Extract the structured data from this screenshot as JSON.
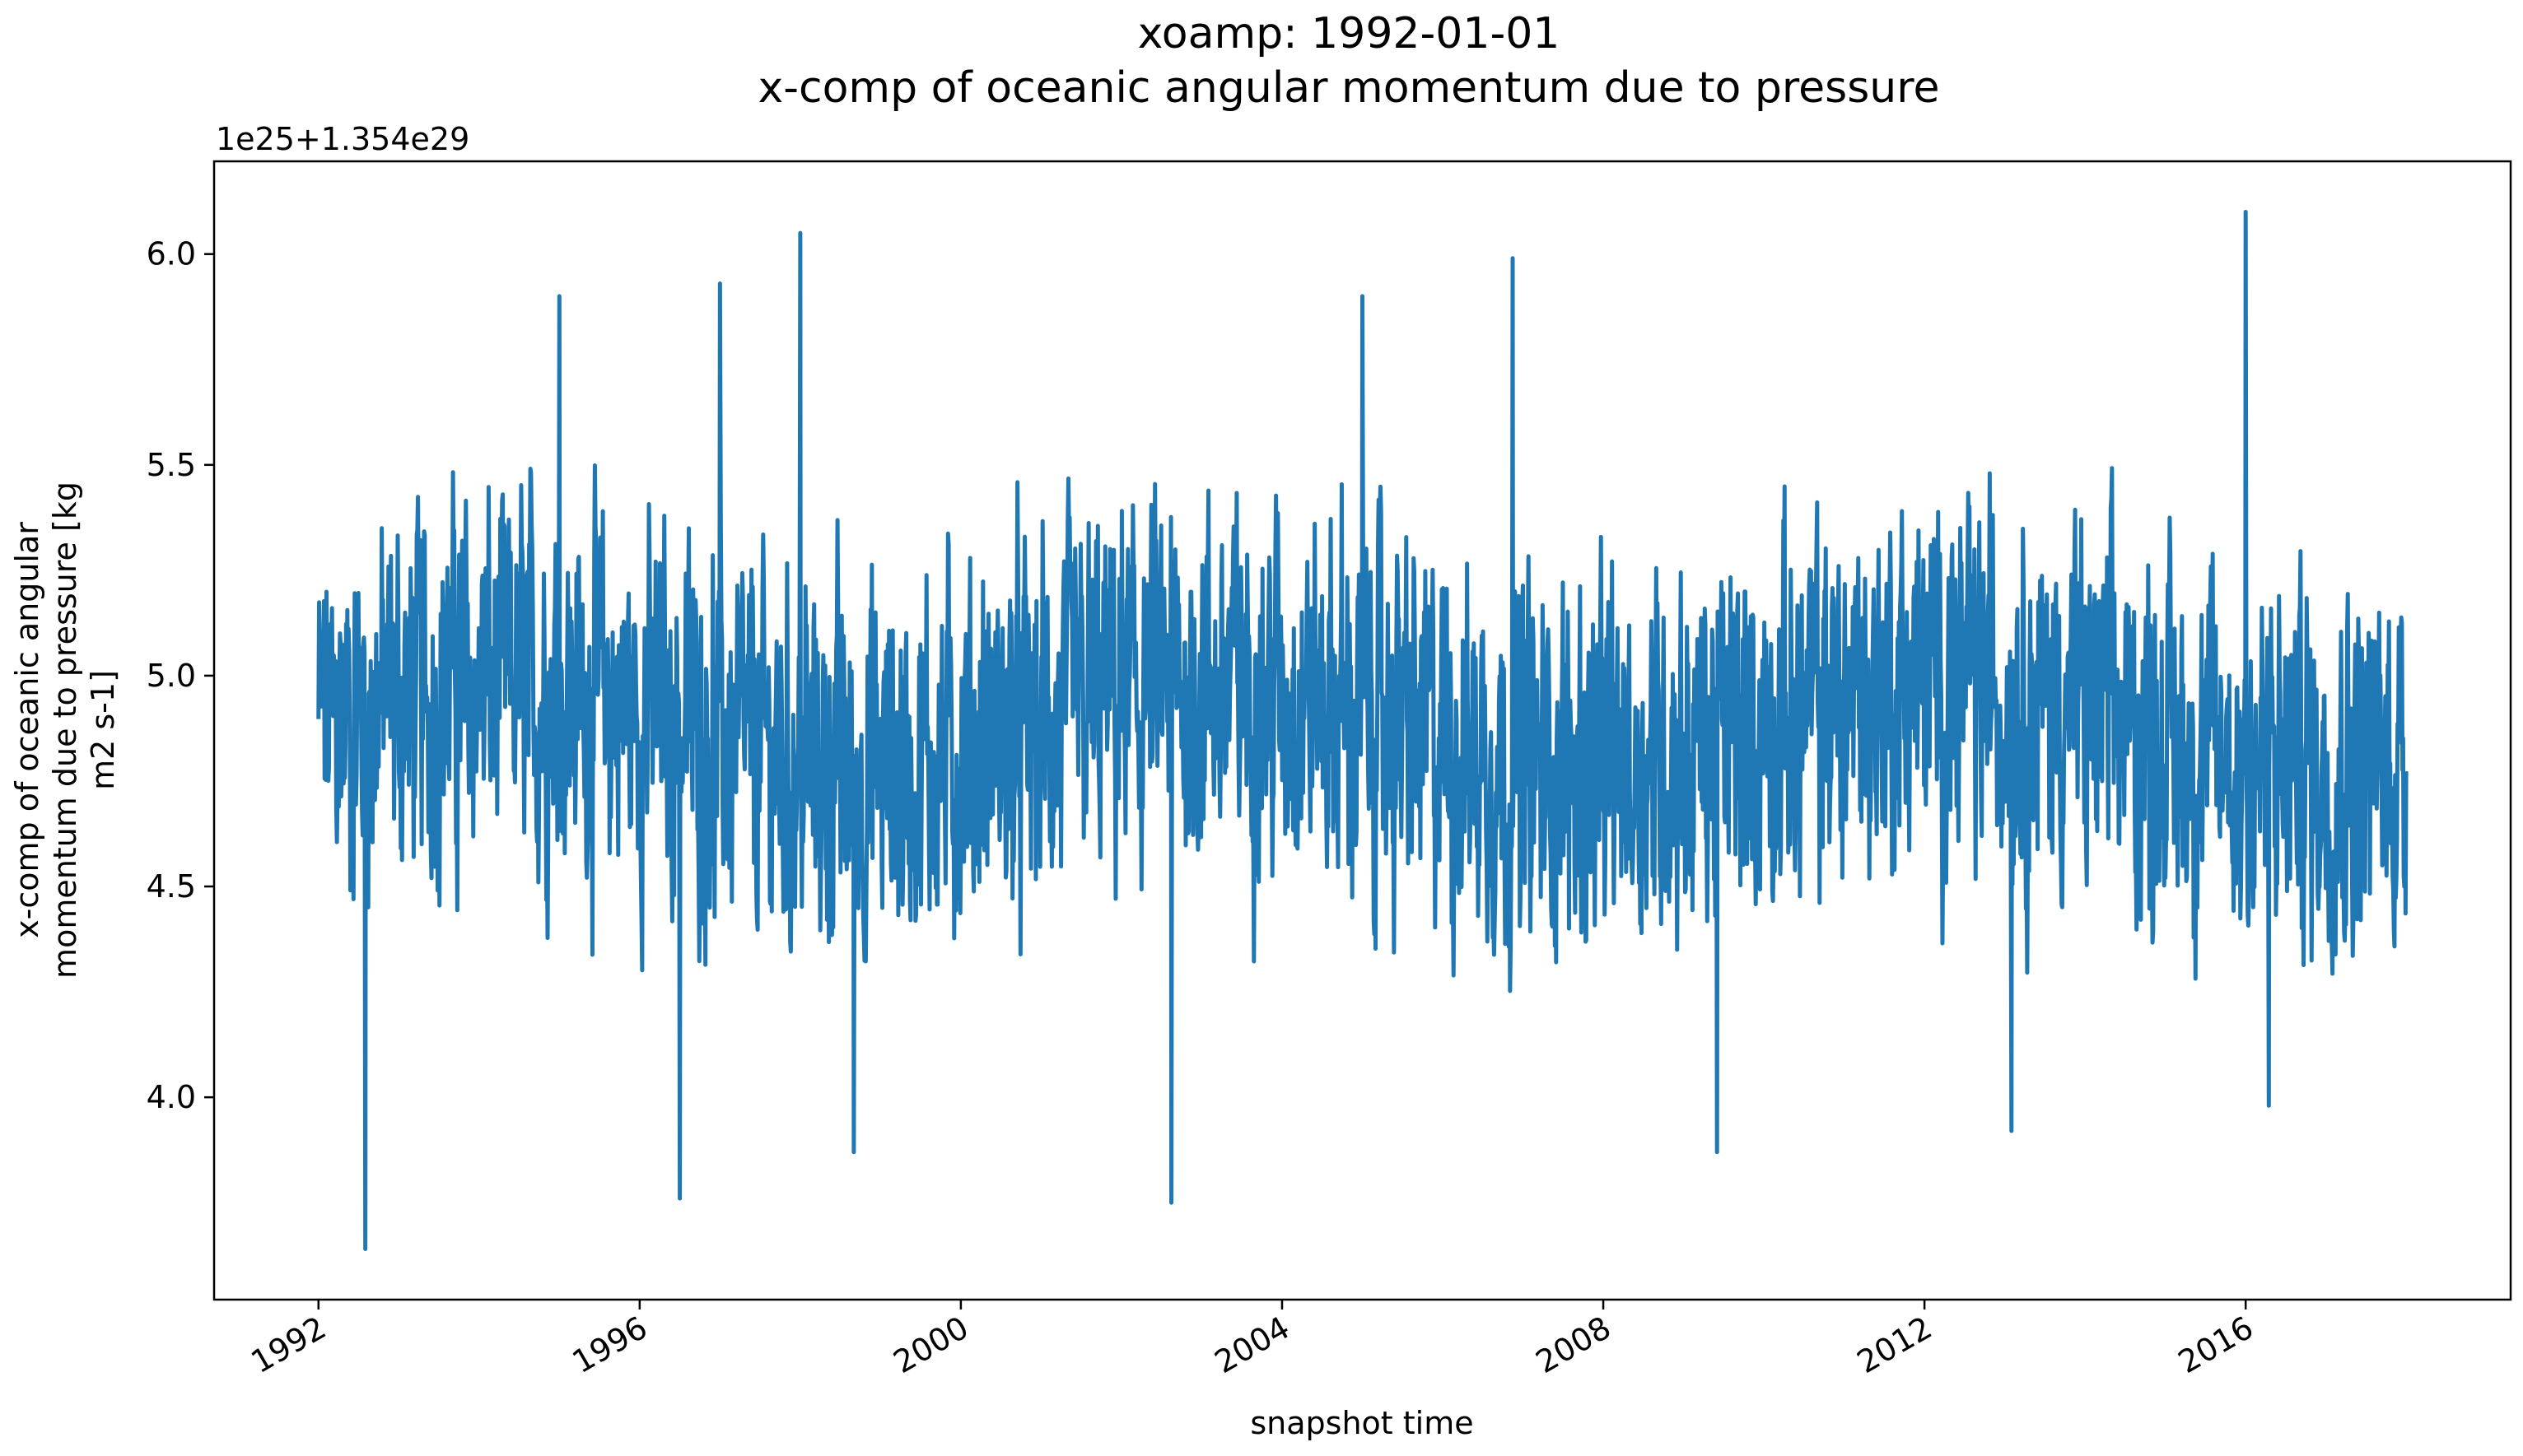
{
  "chart_data": {
    "type": "line",
    "title": "xoamp: 1992-01-01",
    "subtitle": "x-comp of oceanic angular momentum due to pressure",
    "xlabel": "snapshot time",
    "ylabel_lines": [
      "x-comp of oceanic angular",
      "momentum due to pressure [kg",
      "m2 s-1]"
    ],
    "y_offset_text": "1e25+1.354e29",
    "y_tick_values": [
      4.0,
      4.5,
      5.0,
      5.5,
      6.0
    ],
    "y_tick_labels": [
      "4.0",
      "4.5",
      "5.0",
      "5.5",
      "6.0"
    ],
    "x_tick_labels": [
      "1992",
      "1996",
      "2000",
      "2004",
      "2008",
      "2012",
      "2016"
    ],
    "x_tick_years": [
      1992,
      1996,
      2000,
      2004,
      2008,
      2012,
      2016
    ],
    "xlim": [
      1990.7,
      2019.3
    ],
    "ylim": [
      3.52,
      6.22
    ],
    "line_color": "#1f77b4",
    "grid": false,
    "legend": "none",
    "series": [
      {
        "x_start": "1992-01-01",
        "x_end": "2017-12-31",
        "mean": 4.88,
        "min": 3.64,
        "max": 6.1,
        "sampling": "daily",
        "peaks": [
          {
            "date": "1992-08-01",
            "value": 3.64
          },
          {
            "date": "1995-01-01",
            "value": 5.9
          },
          {
            "date": "1996-07-01",
            "value": 3.76
          },
          {
            "date": "1997-01-01",
            "value": 5.93
          },
          {
            "date": "1998-01-01",
            "value": 6.05
          },
          {
            "date": "1998-09-01",
            "value": 3.87
          },
          {
            "date": "2002-08-15",
            "value": 3.75
          },
          {
            "date": "2005-01-01",
            "value": 5.9
          },
          {
            "date": "2006-11-15",
            "value": 5.99
          },
          {
            "date": "2009-06-01",
            "value": 3.87
          },
          {
            "date": "2013-02-01",
            "value": 3.92
          },
          {
            "date": "2016-01-01",
            "value": 6.1
          },
          {
            "date": "2016-04-15",
            "value": 3.98
          }
        ]
      }
    ]
  }
}
